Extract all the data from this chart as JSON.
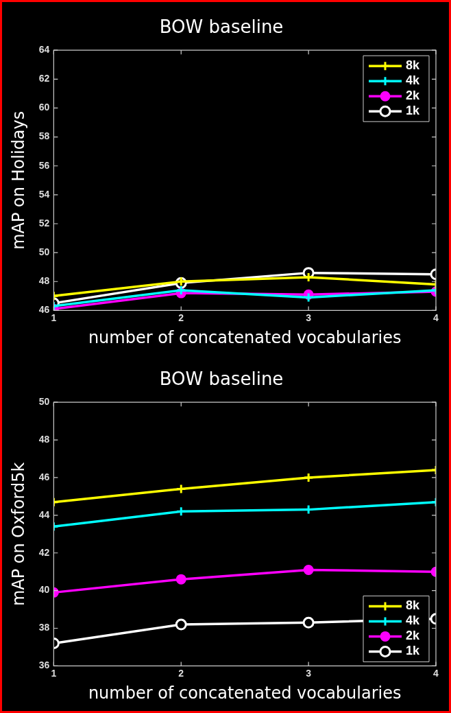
{
  "chart_data": [
    {
      "type": "line",
      "title": "BOW baseline",
      "xlabel": "number of concatenated vocabularies",
      "ylabel": "mAP on Holidays",
      "x": [
        1,
        2,
        3,
        4
      ],
      "xlim": [
        1,
        4
      ],
      "xticks": [
        1,
        2,
        3,
        4
      ],
      "ylim": [
        46,
        64
      ],
      "yticks": [
        46,
        48,
        50,
        52,
        54,
        56,
        58,
        60,
        62,
        64
      ],
      "grid": false,
      "legend": "top right",
      "line_style": "solid",
      "series": [
        {
          "name": "8k",
          "color": "#ffff00",
          "marker": "cross",
          "values": [
            47.0,
            48.0,
            48.3,
            47.8
          ]
        },
        {
          "name": "4k",
          "color": "#00ffff",
          "marker": "cross",
          "values": [
            46.3,
            47.4,
            46.9,
            47.4
          ]
        },
        {
          "name": "2k",
          "color": "#ff00ff",
          "marker": "circle",
          "values": [
            46.1,
            47.2,
            47.1,
            47.3
          ]
        },
        {
          "name": "1k",
          "color": "#ffffff",
          "marker": "circle",
          "values": [
            46.5,
            47.9,
            48.6,
            48.5
          ]
        }
      ]
    },
    {
      "type": "line",
      "title": "BOW baseline",
      "xlabel": "number of concatenated vocabularies",
      "ylabel": "mAP on Oxford5k",
      "x": [
        1,
        2,
        3,
        4
      ],
      "xlim": [
        1,
        4
      ],
      "xticks": [
        1,
        2,
        3,
        4
      ],
      "ylim": [
        36,
        50
      ],
      "yticks": [
        36,
        38,
        40,
        42,
        44,
        46,
        48,
        50
      ],
      "grid": false,
      "legend": "bottom right",
      "line_style": "solid",
      "series": [
        {
          "name": "8k",
          "color": "#ffff00",
          "marker": "cross",
          "values": [
            44.7,
            45.4,
            46.0,
            46.4
          ]
        },
        {
          "name": "4k",
          "color": "#00ffff",
          "marker": "cross",
          "values": [
            43.4,
            44.2,
            44.3,
            44.7
          ]
        },
        {
          "name": "2k",
          "color": "#ff00ff",
          "marker": "circle",
          "values": [
            39.9,
            40.6,
            41.1,
            41.0
          ]
        },
        {
          "name": "1k",
          "color": "#ffffff",
          "marker": "circle",
          "values": [
            37.2,
            38.2,
            38.3,
            38.5
          ]
        }
      ]
    }
  ]
}
